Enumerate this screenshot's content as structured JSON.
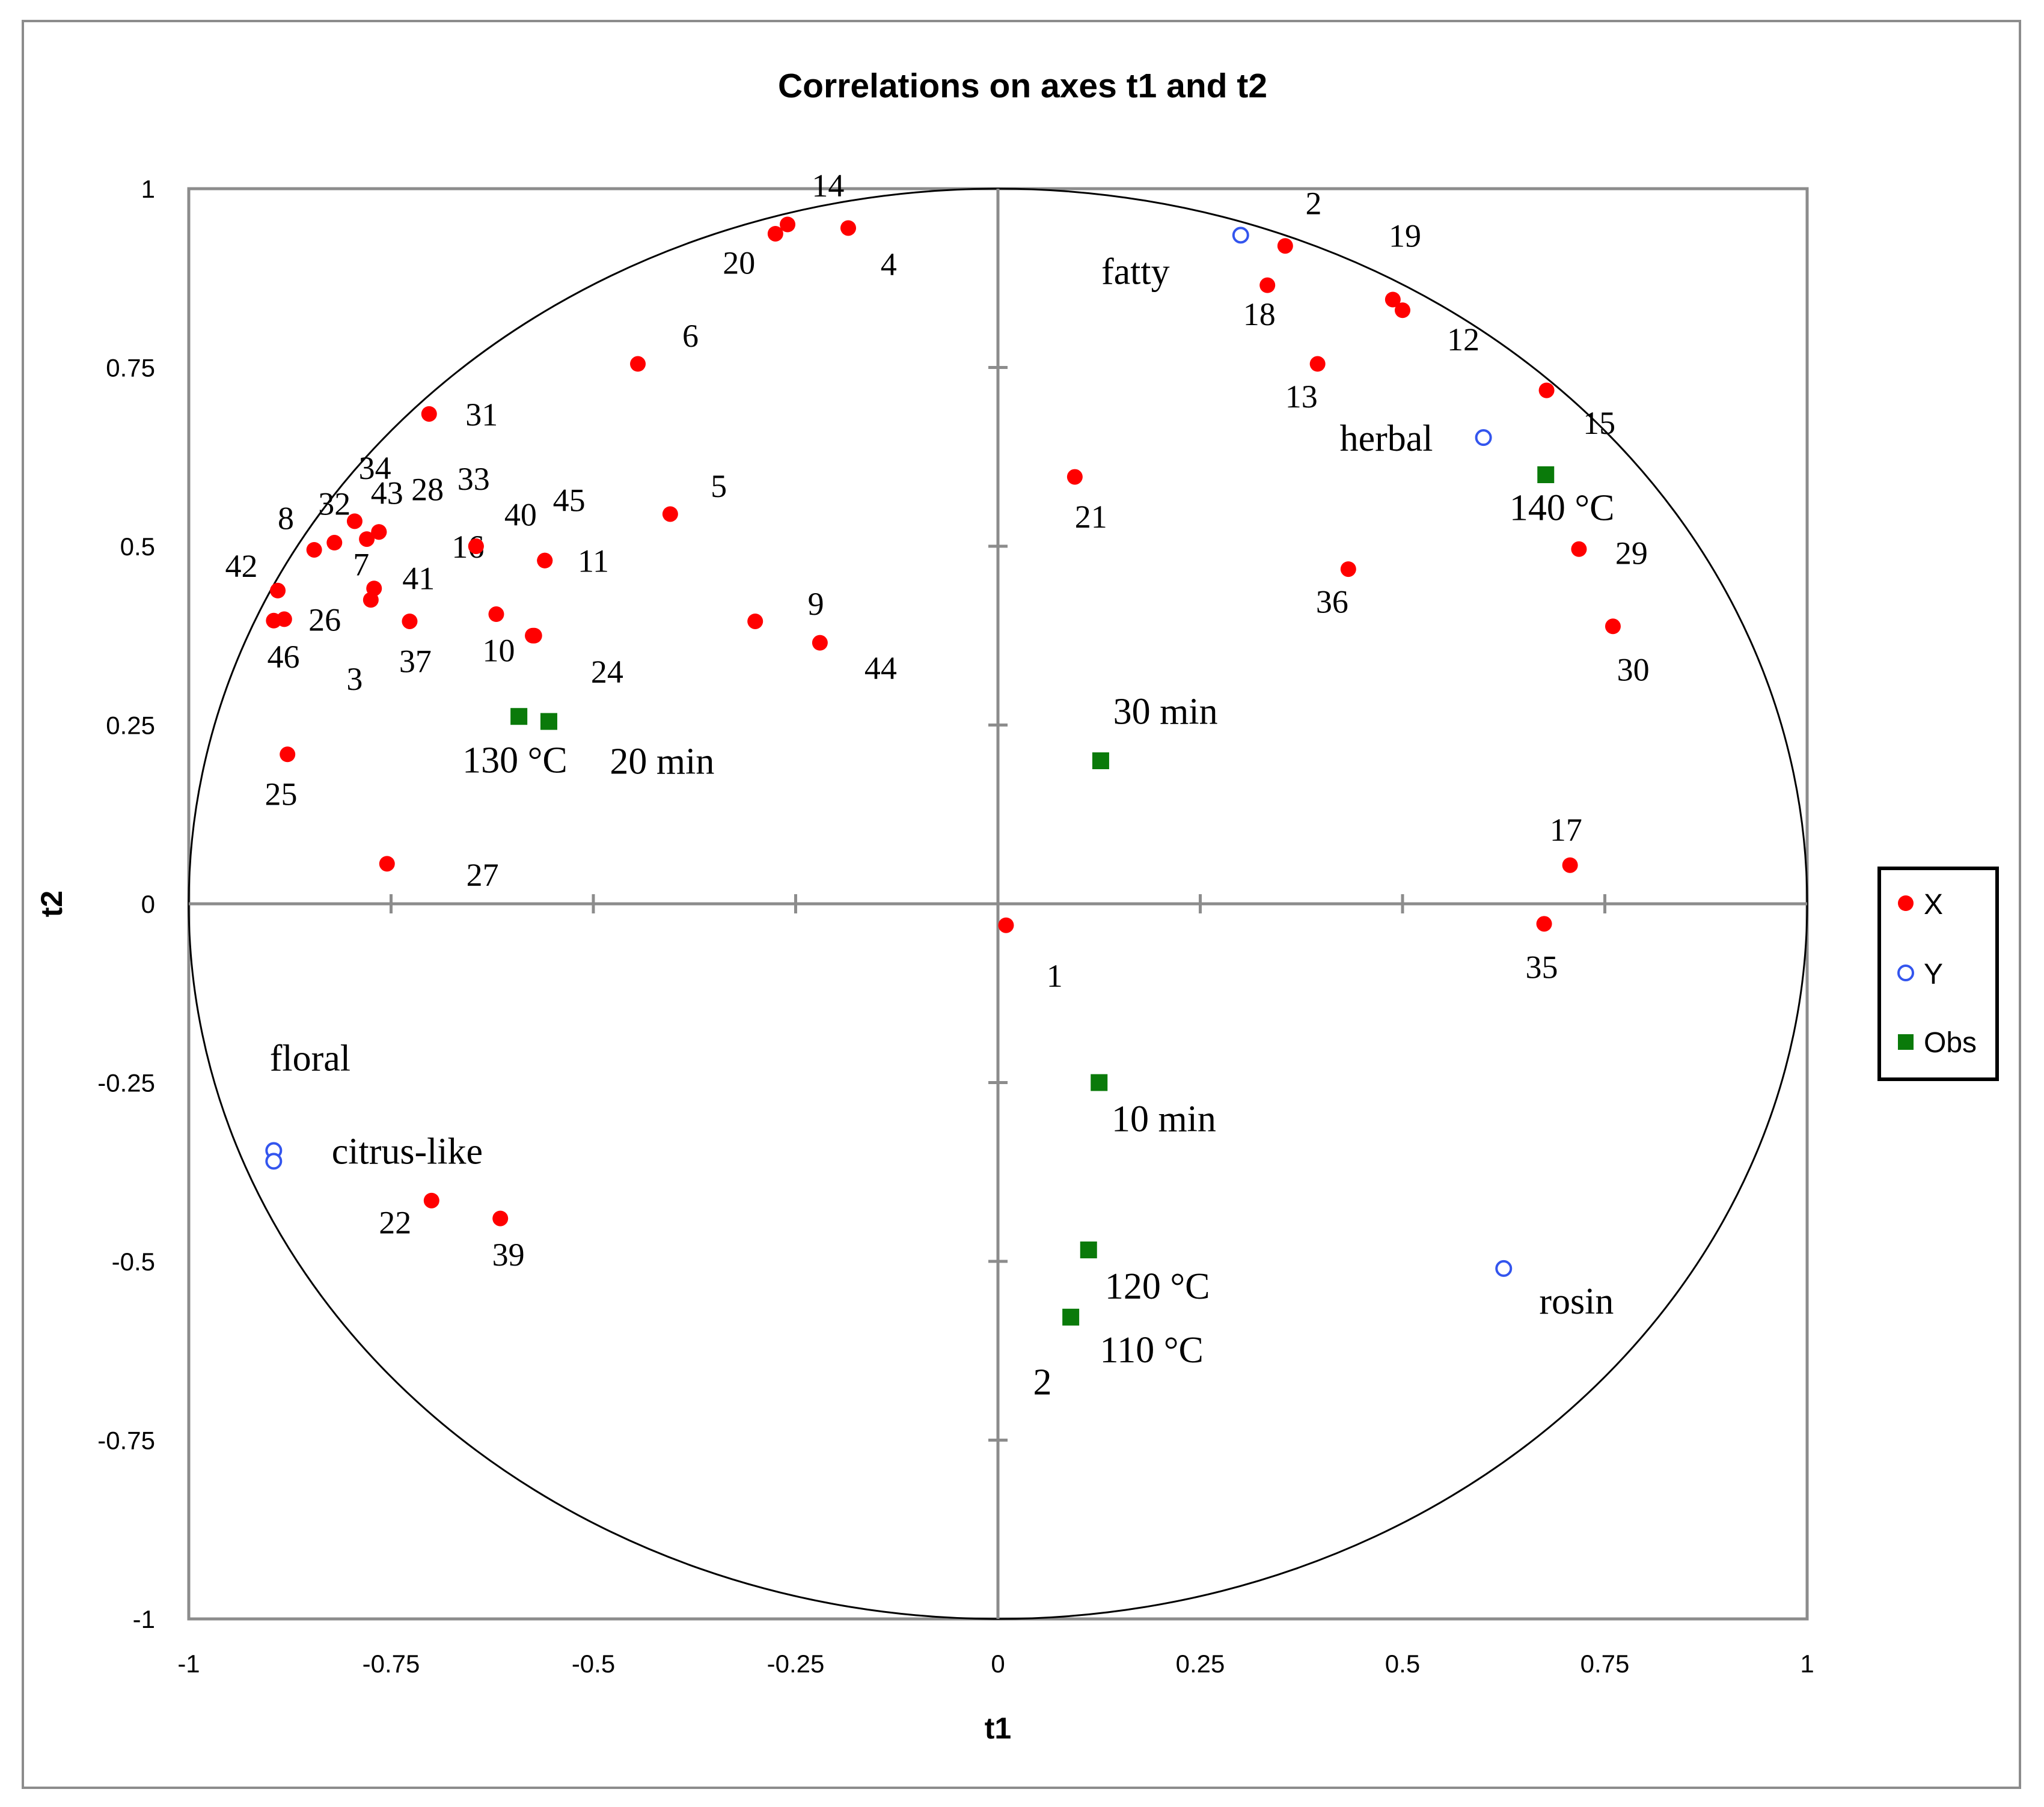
{
  "chart_data": {
    "type": "scatter",
    "title": "Correlations on axes t1 and t2",
    "xlabel": "t1",
    "ylabel": "t2",
    "xlim": [
      -1,
      1
    ],
    "ylim": [
      -1,
      1
    ],
    "xticks": [
      "-1",
      "-0.75",
      "-0.5",
      "-0.25",
      "0",
      "0.25",
      "0.5",
      "0.75",
      "1"
    ],
    "yticks": [
      "-1",
      "-0.75",
      "-0.5",
      "-0.25",
      "0",
      "0.25",
      "0.5",
      "0.75",
      "1"
    ],
    "xtick_values": [
      -1,
      -0.75,
      -0.5,
      -0.25,
      0,
      0.25,
      0.5,
      0.75,
      1
    ],
    "ytick_values": [
      -1,
      -0.75,
      -0.5,
      -0.25,
      0,
      0.25,
      0.5,
      0.75,
      1
    ],
    "unit_circle": true,
    "legend": {
      "position": "right",
      "entries": [
        {
          "name": "X",
          "marker": "filled-circle",
          "color": "#ff0000"
        },
        {
          "name": "Y",
          "marker": "open-circle",
          "color": "#3355ee"
        },
        {
          "name": "Obs",
          "marker": "square",
          "color": "#0a7a0a"
        }
      ]
    },
    "series": [
      {
        "name": "X",
        "color": "#ff0000",
        "points": [
          {
            "label": "1",
            "x": 0.01,
            "y": -0.03,
            "dx": 0.06,
            "dy": -0.07
          },
          {
            "label": "2",
            "x": 0.355,
            "y": 0.92,
            "dx": 0.035,
            "dy": 0.06
          },
          {
            "label": "3",
            "x": -0.775,
            "y": 0.425,
            "dx": -0.02,
            "dy": -0.11
          },
          {
            "label": "4",
            "x": -0.185,
            "y": 0.945,
            "dx": 0.05,
            "dy": -0.05
          },
          {
            "label": "5",
            "x": -0.405,
            "y": 0.545,
            "dx": 0.06,
            "dy": 0.04
          },
          {
            "label": "6",
            "x": -0.445,
            "y": 0.755,
            "dx": 0.065,
            "dy": 0.04
          },
          {
            "label": "7",
            "x": -0.78,
            "y": 0.51,
            "dx": -0.007,
            "dy": -0.035
          },
          {
            "label": "8",
            "x": -0.845,
            "y": 0.495,
            "dx": -0.035,
            "dy": 0.045
          },
          {
            "label": "9",
            "x": -0.3,
            "y": 0.395,
            "dx": 0.075,
            "dy": 0.025
          },
          {
            "label": "10",
            "x": -0.62,
            "y": 0.405,
            "dx": 0.003,
            "dy": -0.05
          },
          {
            "label": "11",
            "x": -0.56,
            "y": 0.48,
            "dx": 0.06,
            "dy": 0.0
          },
          {
            "label": "12",
            "x": 0.5,
            "y": 0.83,
            "dx": 0.075,
            "dy": -0.04
          },
          {
            "label": "13",
            "x": 0.395,
            "y": 0.755,
            "dx": -0.02,
            "dy": -0.045
          },
          {
            "label": "14",
            "x": -0.26,
            "y": 0.95,
            "dx": 0.05,
            "dy": 0.055
          },
          {
            "label": "15",
            "x": 0.678,
            "y": 0.718,
            "dx": 0.065,
            "dy": -0.045
          },
          {
            "label": "16",
            "x": -0.645,
            "y": 0.5,
            "dx": -0.01,
            "dy": 0.0
          },
          {
            "label": "17",
            "x": 0.707,
            "y": 0.054,
            "dx": -0.005,
            "dy": 0.05
          },
          {
            "label": "18",
            "x": 0.333,
            "y": 0.865,
            "dx": -0.01,
            "dy": -0.04
          },
          {
            "label": "19",
            "x": 0.488,
            "y": 0.845,
            "dx": 0.015,
            "dy": 0.09
          },
          {
            "label": "20",
            "x": -0.275,
            "y": 0.937,
            "dx": -0.045,
            "dy": -0.04
          },
          {
            "label": "21",
            "x": 0.095,
            "y": 0.597,
            "dx": 0.02,
            "dy": -0.055
          },
          {
            "label": "22",
            "x": -0.7,
            "y": -0.415,
            "dx": -0.045,
            "dy": -0.03
          },
          {
            "label": "24",
            "x": -0.573,
            "y": 0.375,
            "dx": 0.09,
            "dy": -0.05
          },
          {
            "label": "25",
            "x": -0.878,
            "y": 0.209,
            "dx": -0.008,
            "dy": -0.055
          },
          {
            "label": "26",
            "x": -0.882,
            "y": 0.398,
            "dx": 0.05,
            "dy": 0.0
          },
          {
            "label": "27",
            "x": -0.755,
            "y": 0.056,
            "dx": 0.118,
            "dy": -0.015
          },
          {
            "label": "28",
            "x": -0.765,
            "y": 0.52,
            "dx": 0.06,
            "dy": 0.06
          },
          {
            "label": "29",
            "x": 0.718,
            "y": 0.496,
            "dx": 0.065,
            "dy": -0.005
          },
          {
            "label": "30",
            "x": 0.76,
            "y": 0.388,
            "dx": 0.025,
            "dy": -0.06
          },
          {
            "label": "31",
            "x": -0.703,
            "y": 0.685,
            "dx": 0.065,
            "dy": 0.0
          },
          {
            "label": "32",
            "x": -0.82,
            "y": 0.505,
            "dx": 0.0,
            "dy": 0.055
          },
          {
            "label": "33",
            "x": -0.645,
            "y": 0.5,
            "dx": -0.003,
            "dy": 0.095
          },
          {
            "label": "34",
            "x": -0.795,
            "y": 0.535,
            "dx": 0.025,
            "dy": 0.075
          },
          {
            "label": "35",
            "x": 0.675,
            "y": -0.028,
            "dx": -0.003,
            "dy": -0.06
          },
          {
            "label": "36",
            "x": 0.433,
            "y": 0.468,
            "dx": -0.02,
            "dy": -0.045
          },
          {
            "label": "37",
            "x": -0.727,
            "y": 0.395,
            "dx": 0.007,
            "dy": -0.055
          },
          {
            "label": "39",
            "x": -0.615,
            "y": -0.44,
            "dx": 0.01,
            "dy": -0.05
          },
          {
            "label": "40",
            "x": -0.575,
            "y": 0.375,
            "dx": -0.015,
            "dy": 0.17
          },
          {
            "label": "41",
            "x": -0.771,
            "y": 0.441,
            "dx": 0.055,
            "dy": 0.015
          },
          {
            "label": "42",
            "x": -0.89,
            "y": 0.438,
            "dx": -0.045,
            "dy": 0.035
          },
          {
            "label": "43",
            "x": -0.765,
            "y": 0.52,
            "dx": 0.01,
            "dy": 0.055
          },
          {
            "label": "44",
            "x": -0.22,
            "y": 0.365,
            "dx": 0.075,
            "dy": -0.035
          },
          {
            "label": "45",
            "x": -0.56,
            "y": 0.48,
            "dx": 0.03,
            "dy": 0.085
          },
          {
            "label": "46",
            "x": -0.895,
            "y": 0.396,
            "dx": 0.012,
            "dy": -0.05
          }
        ]
      },
      {
        "name": "Y",
        "color": "#3355ee",
        "points": [
          {
            "label": "fatty",
            "x": 0.3,
            "y": 0.935,
            "dx": -0.13,
            "dy": -0.05
          },
          {
            "label": "herbal",
            "x": 0.6,
            "y": 0.652,
            "dx": -0.12,
            "dy": 0.0
          },
          {
            "label": "rosin",
            "x": 0.625,
            "y": -0.51,
            "dx": 0.09,
            "dy": -0.045
          },
          {
            "label": "floral",
            "x": -0.895,
            "y": -0.345,
            "dx": 0.045,
            "dy": 0.13
          },
          {
            "label": "citrus-like",
            "x": -0.895,
            "y": -0.36,
            "dx": 0.165,
            "dy": 0.015
          }
        ]
      },
      {
        "name": "Obs",
        "color": "#0a7a0a",
        "points": [
          {
            "label": "140 °C",
            "x": 0.677,
            "y": 0.6,
            "dx": 0.02,
            "dy": -0.045
          },
          {
            "label": "130 °C",
            "x": -0.592,
            "y": 0.262,
            "dx": -0.005,
            "dy": -0.06
          },
          {
            "label": "20 min",
            "x": -0.555,
            "y": 0.255,
            "dx": 0.14,
            "dy": -0.055
          },
          {
            "label": "30 min",
            "x": 0.127,
            "y": 0.2,
            "dx": 0.08,
            "dy": 0.07
          },
          {
            "label": "10 min",
            "x": 0.125,
            "y": -0.25,
            "dx": 0.08,
            "dy": -0.05
          },
          {
            "label": "120 °C",
            "x": 0.112,
            "y": -0.484,
            "dx": 0.085,
            "dy": -0.05
          },
          {
            "label": "110 °C",
            "x": 0.09,
            "y": -0.578,
            "dx": 0.1,
            "dy": -0.045
          },
          {
            "label": "2",
            "x": 0.09,
            "y": -0.578,
            "dx": -0.035,
            "dy": -0.09
          }
        ]
      }
    ]
  }
}
